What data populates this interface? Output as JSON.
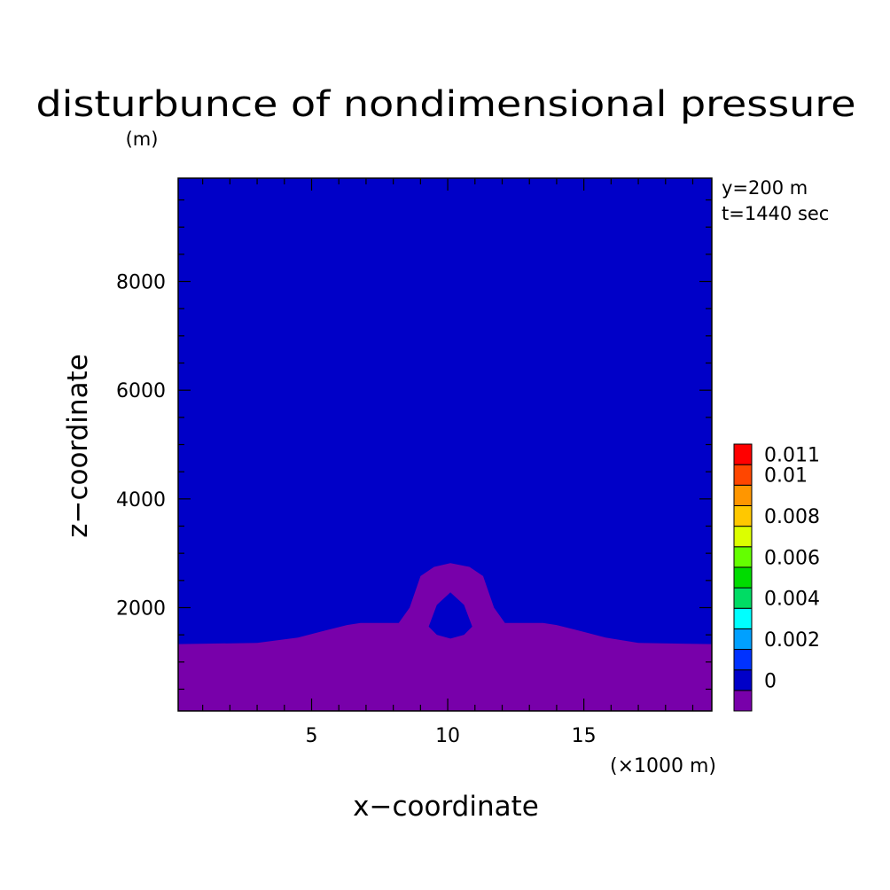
{
  "chart_data": {
    "type": "heatmap",
    "title": "disturbunce of nondimensional pressure",
    "units": "(m)",
    "xlabel": "x−coordinate",
    "ylabel": "z−coordinate",
    "x_unit": "(×1000 m)",
    "annotations": [
      "y=200 m",
      "t=1440 sec"
    ],
    "xlim": [
      0.1,
      19.7
    ],
    "ylim": [
      100,
      9900
    ],
    "x_ticks": [
      5,
      10,
      15
    ],
    "y_ticks": [
      2000,
      4000,
      6000,
      8000
    ],
    "x_tick_labels": [
      "5",
      "10",
      "15"
    ],
    "y_tick_labels": [
      "2000",
      "4000",
      "6000",
      "8000"
    ],
    "background_level_color": "#0000c8",
    "lower_level_color": "#7800aa",
    "lower_region_top_z": [
      [
        0.1,
        1330
      ],
      [
        3.0,
        1350
      ],
      [
        4.5,
        1450
      ],
      [
        5.5,
        1580
      ],
      [
        6.3,
        1680
      ],
      [
        6.8,
        1720
      ],
      [
        8.2,
        1720
      ],
      [
        8.6,
        2000
      ],
      [
        9.0,
        2580
      ],
      [
        9.5,
        2750
      ],
      [
        10.1,
        2820
      ],
      [
        10.8,
        2750
      ],
      [
        11.3,
        2580
      ],
      [
        11.7,
        2000
      ],
      [
        12.1,
        1720
      ],
      [
        13.5,
        1720
      ],
      [
        14.0,
        1680
      ],
      [
        14.8,
        1580
      ],
      [
        15.8,
        1450
      ],
      [
        17.0,
        1350
      ],
      [
        19.7,
        1330
      ]
    ],
    "lower_region_hole": [
      [
        9.3,
        1650
      ],
      [
        9.6,
        2050
      ],
      [
        10.1,
        2280
      ],
      [
        10.6,
        2050
      ],
      [
        10.9,
        1650
      ],
      [
        10.6,
        1500
      ],
      [
        10.1,
        1430
      ],
      [
        9.6,
        1500
      ]
    ],
    "colorbar": {
      "levels": [
        -0.001,
        0,
        0.001,
        0.002,
        0.003,
        0.004,
        0.005,
        0.006,
        0.007,
        0.008,
        0.009,
        0.01,
        0.011
      ],
      "colors": [
        "#7800aa",
        "#0000c8",
        "#0032ff",
        "#00a0ff",
        "#00ffff",
        "#00dc64",
        "#00dc00",
        "#64ff00",
        "#dcff00",
        "#ffc800",
        "#ff9600",
        "#ff4600",
        "#ff0000"
      ],
      "labels": [
        {
          "value": 0,
          "text": "0"
        },
        {
          "value": 0.002,
          "text": "0.002"
        },
        {
          "value": 0.004,
          "text": "0.004"
        },
        {
          "value": 0.006,
          "text": "0.006"
        },
        {
          "value": 0.008,
          "text": "0.008"
        },
        {
          "value": 0.01,
          "text": "0.01"
        },
        {
          "value": 0.011,
          "text": "0.011"
        }
      ]
    }
  }
}
